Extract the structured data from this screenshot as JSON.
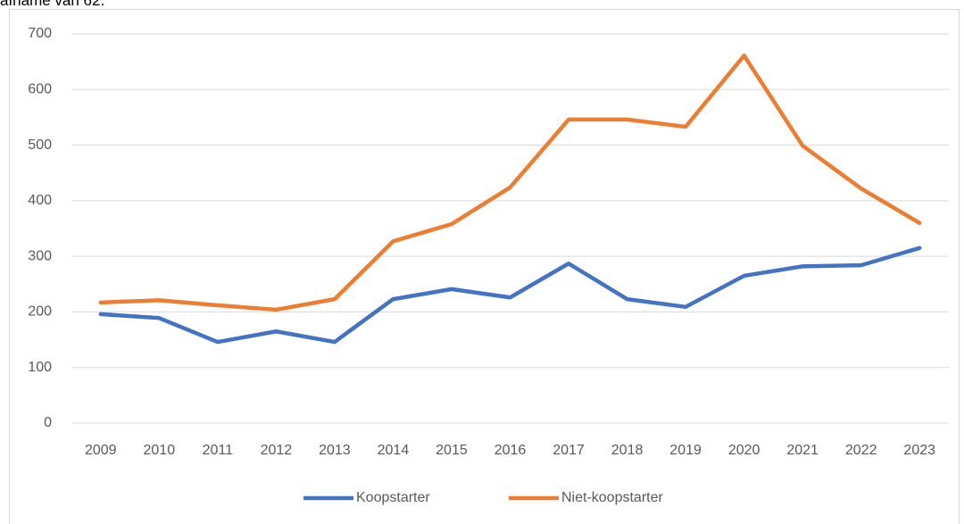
{
  "header_text": "afname van 62.",
  "chart_data": {
    "type": "line",
    "categories": [
      "2009",
      "2010",
      "2011",
      "2012",
      "2013",
      "2014",
      "2015",
      "2016",
      "2017",
      "2018",
      "2019",
      "2020",
      "2021",
      "2022",
      "2023"
    ],
    "series": [
      {
        "name": "Koopstarter",
        "color": "#4472c4",
        "values": [
          196,
          189,
          146,
          165,
          146,
          223,
          241,
          226,
          287,
          223,
          209,
          265,
          282,
          284,
          315
        ]
      },
      {
        "name": "Niet-koopstarter",
        "color": "#ed7d31",
        "values": [
          217,
          221,
          212,
          204,
          223,
          327,
          358,
          424,
          546,
          546,
          533,
          661,
          499,
          422,
          360
        ]
      }
    ],
    "ylim": [
      0,
      700
    ],
    "yticks": [
      0,
      100,
      200,
      300,
      400,
      500,
      600,
      700
    ],
    "grid": true,
    "legend": "bottom"
  }
}
